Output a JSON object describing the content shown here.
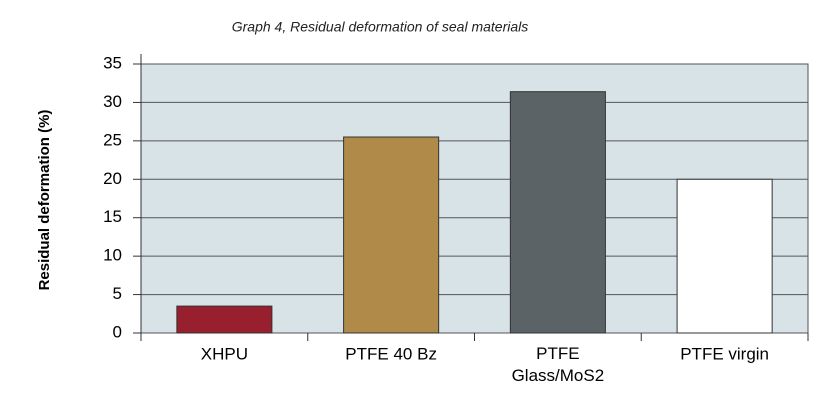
{
  "chart_data": {
    "type": "bar",
    "title": "Graph 4, Residual deformation of seal materials",
    "y_label": "Residual deformation (%)",
    "categories": [
      "XHPU",
      "PTFE 40 Bz",
      "PTFE Glass/MoS2",
      "PTFE virgin"
    ],
    "values": [
      3.5,
      25.5,
      31.4,
      20
    ],
    "colors": [
      "#98202e",
      "#b08a48",
      "#5c6367",
      "#ffffff"
    ],
    "ylim": [
      0,
      35
    ],
    "yticks": [
      0,
      5,
      10,
      15,
      20,
      25,
      30,
      35
    ],
    "grid": true
  }
}
